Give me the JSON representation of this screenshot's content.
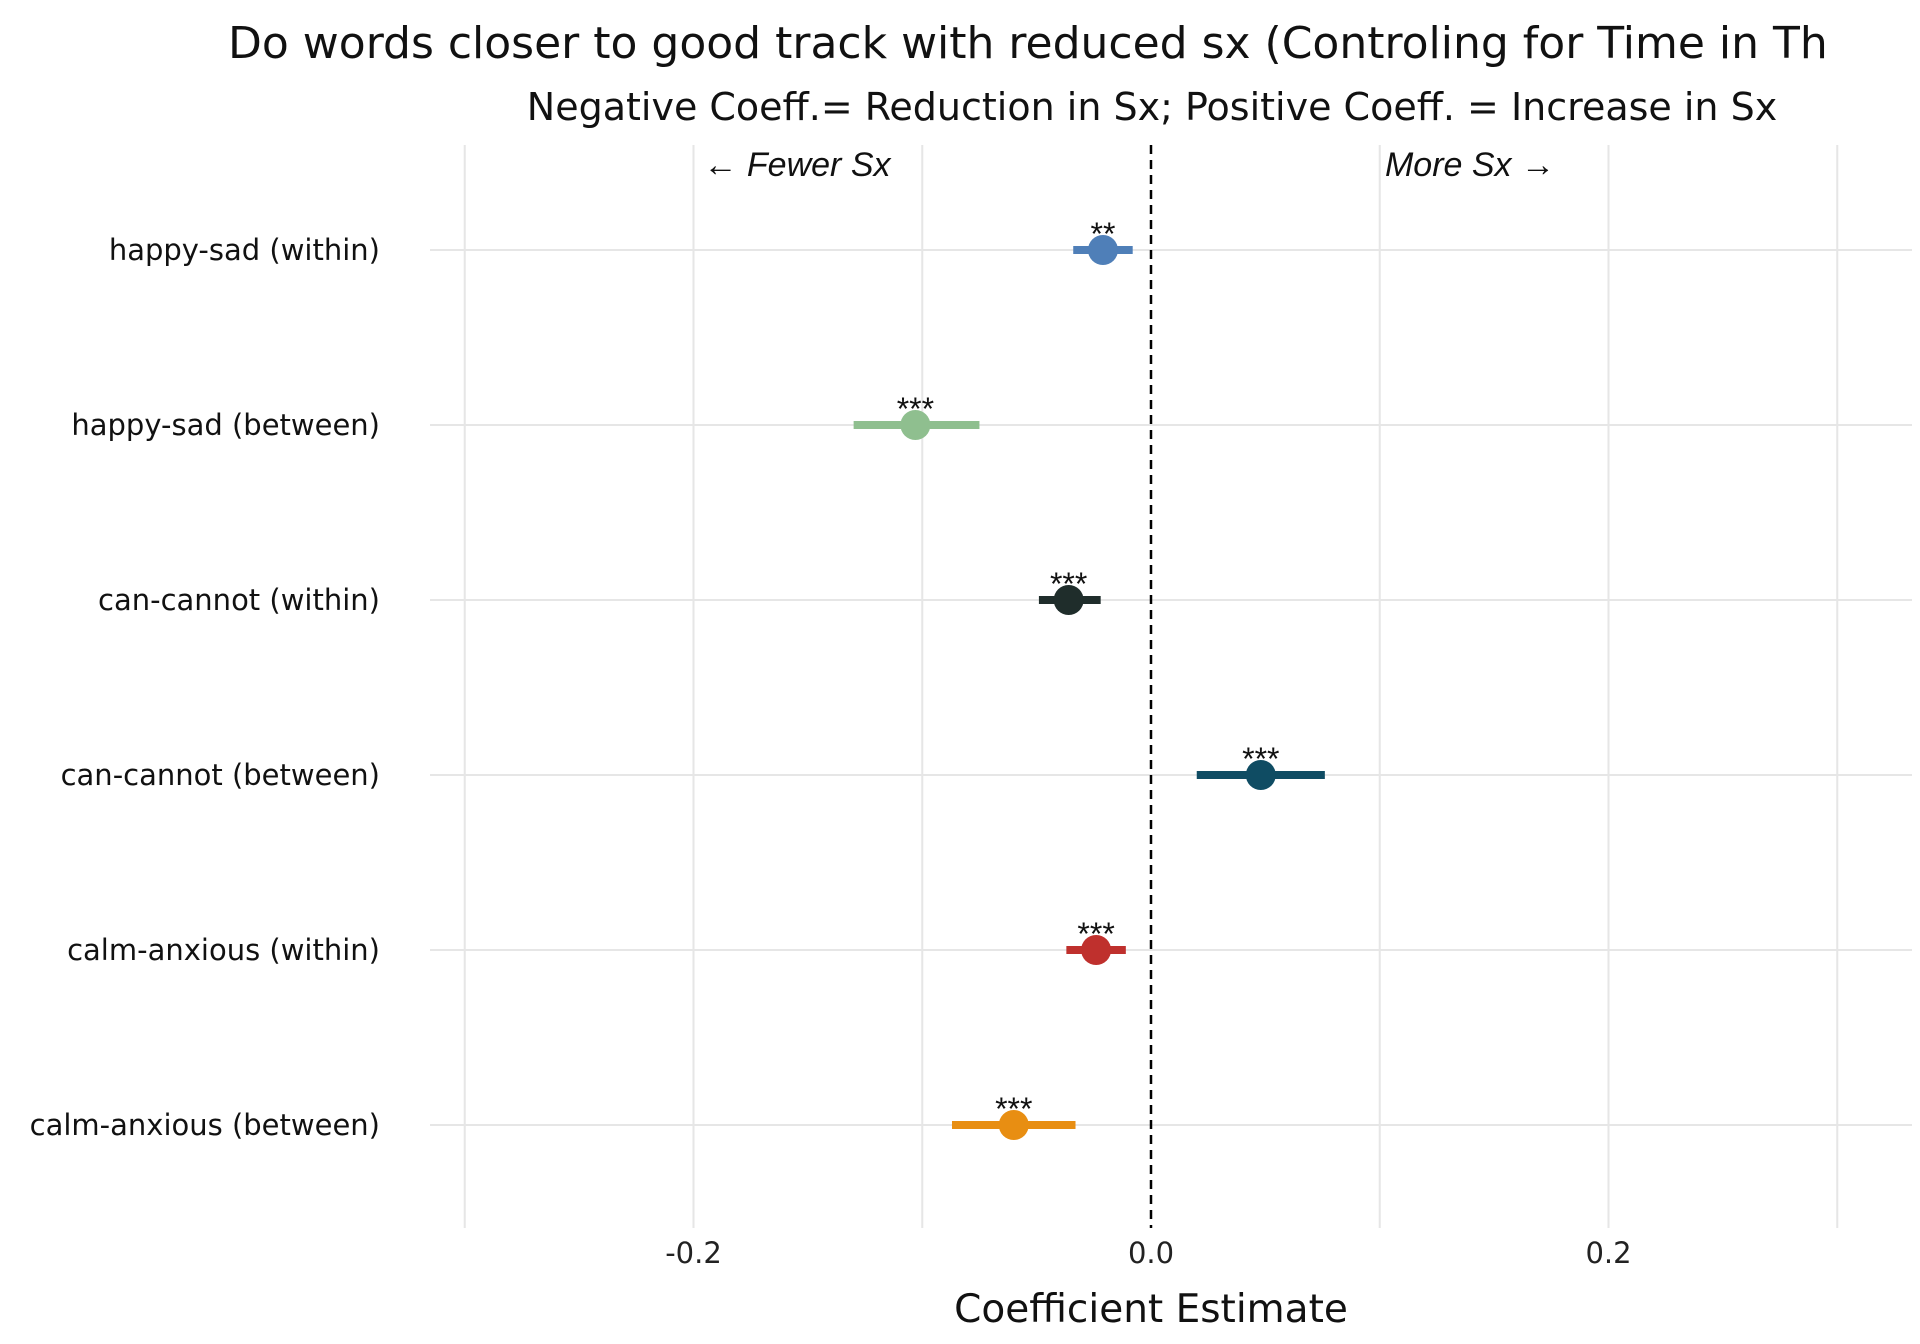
{
  "chart_data": {
    "type": "scatter",
    "title": "Do words closer to good track with reduced sx (Controling for Time in Th",
    "subtitle": "Negative Coeff.= Reduction in Sx; Positive Coeff. = Increase in Sx",
    "xlabel": "Coefficient Estimate",
    "ylabel": "",
    "xlim": [
      -0.3,
      0.33
    ],
    "x_ticks": [
      -0.2,
      0.0,
      0.2
    ],
    "x_tick_labels": [
      "-0.2",
      "0.0",
      "0.2"
    ],
    "grid": true,
    "reference_line": {
      "x": 0.0,
      "style": "dashed"
    },
    "annotations": {
      "left": "← Fewer Sx",
      "right": "More Sx →"
    },
    "categories": [
      "happy-sad (within)",
      "happy-sad (between)",
      "can-cannot (within)",
      "can-cannot (between)",
      "calm-anxious (within)",
      "calm-anxious (between)"
    ],
    "points": [
      {
        "category": "happy-sad (within)",
        "estimate": -0.021,
        "ci_low": -0.034,
        "ci_high": -0.008,
        "sig": "**",
        "color": "#4f7fb8"
      },
      {
        "category": "happy-sad (between)",
        "estimate": -0.103,
        "ci_low": -0.13,
        "ci_high": -0.075,
        "sig": "***",
        "color": "#8fbf8f"
      },
      {
        "category": "can-cannot (within)",
        "estimate": -0.036,
        "ci_low": -0.049,
        "ci_high": -0.022,
        "sig": "***",
        "color": "#1f2d2b"
      },
      {
        "category": "can-cannot (between)",
        "estimate": 0.048,
        "ci_low": 0.02,
        "ci_high": 0.076,
        "sig": "***",
        "color": "#0f4c63"
      },
      {
        "category": "calm-anxious (within)",
        "estimate": -0.024,
        "ci_low": -0.037,
        "ci_high": -0.011,
        "sig": "***",
        "color": "#bf302d"
      },
      {
        "category": "calm-anxious (between)",
        "estimate": -0.06,
        "ci_low": -0.087,
        "ci_high": -0.033,
        "sig": "***",
        "color": "#e88e12"
      }
    ]
  }
}
